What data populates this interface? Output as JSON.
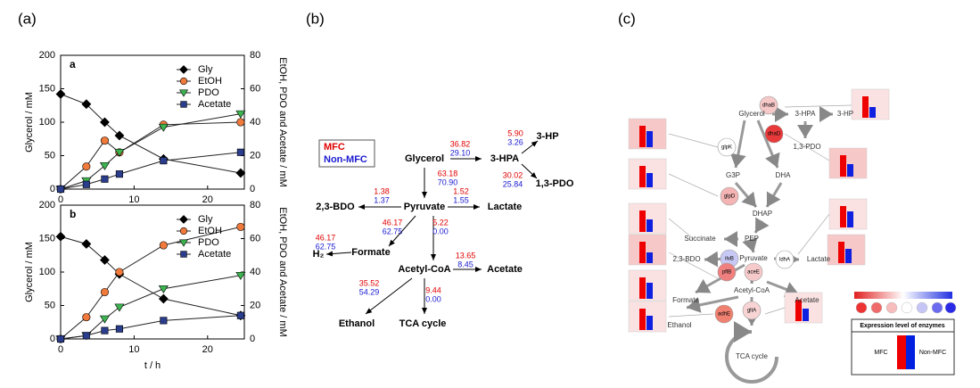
{
  "panel_labels": [
    "(a)",
    "(b)",
    "(c)"
  ],
  "chart_data": [
    {
      "type": "line",
      "label": "a",
      "x": [
        0,
        3.5,
        6,
        8,
        14,
        24.5
      ],
      "xlim": [
        0,
        25
      ],
      "xticks": [
        0,
        10,
        20
      ],
      "ylim": [
        0,
        200
      ],
      "yticks": [
        0,
        50,
        100,
        150,
        200
      ],
      "y2lim": [
        0,
        80
      ],
      "y2ticks": [
        0,
        20,
        40,
        60,
        80
      ],
      "y_label": "Glycerol / mM",
      "y2_label": "EtOH, PDO and Acetate / mM",
      "series": [
        {
          "name": "Gly",
          "color": "#000000",
          "marker": "diamond",
          "values": [
            142,
            127,
            100,
            80,
            45,
            24
          ]
        },
        {
          "name": "EtOH",
          "color": "#f07a3c",
          "marker": "circle",
          "axis": "y2",
          "values": [
            0,
            13.5,
            29,
            22,
            38.5,
            40
          ]
        },
        {
          "name": "PDO",
          "color": "#3cb450",
          "marker": "triangle",
          "axis": "y2",
          "values": [
            0,
            5,
            14,
            22,
            37,
            45
          ]
        },
        {
          "name": "Acetate",
          "color": "#2a3c8c",
          "marker": "square",
          "axis": "y2",
          "values": [
            0,
            2.8,
            6,
            9,
            17,
            22
          ]
        }
      ]
    },
    {
      "type": "line",
      "label": "b",
      "x": [
        0,
        3.5,
        6,
        8,
        14,
        24.5
      ],
      "xlim": [
        0,
        25
      ],
      "xticks": [
        0,
        10,
        20
      ],
      "ylim": [
        0,
        200
      ],
      "yticks": [
        0,
        50,
        100,
        150,
        200
      ],
      "y2lim": [
        0,
        80
      ],
      "y2ticks": [
        0,
        20,
        40,
        60,
        80
      ],
      "x_label": "t / h",
      "y_label": "Glycerol / mM",
      "y2_label": "EtOH, PDO and Acetate / mM",
      "series": [
        {
          "name": "Gly",
          "color": "#000000",
          "marker": "diamond",
          "values": [
            153,
            142,
            118,
            97,
            60,
            35
          ]
        },
        {
          "name": "EtOH",
          "color": "#f07a3c",
          "marker": "circle",
          "axis": "y2",
          "values": [
            0,
            13,
            28,
            40,
            56,
            67
          ]
        },
        {
          "name": "PDO",
          "color": "#3cb450",
          "marker": "triangle",
          "axis": "y2",
          "values": [
            0,
            2,
            12,
            19,
            30,
            38
          ]
        },
        {
          "name": "Acetate",
          "color": "#2a3c8c",
          "marker": "square",
          "axis": "y2",
          "values": [
            0,
            2,
            5,
            6,
            11,
            14
          ]
        }
      ]
    }
  ],
  "pathway_b": {
    "legend": [
      "MFC",
      "Non-MFC"
    ],
    "nodes": [
      "Glycerol",
      "3-HPA",
      "3-HP",
      "1,3-PDO",
      "Pyruvate",
      "2,3-BDO",
      "Lactate",
      "Formate",
      "H₂",
      "Acetyl-CoA",
      "Acetate",
      "Ethanol",
      "TCA cycle"
    ],
    "fluxes": [
      {
        "mfc": "36.82",
        "non_mfc": "29.10"
      },
      {
        "mfc": "5.90",
        "non_mfc": "3.26"
      },
      {
        "mfc": "30.02",
        "non_mfc": "25.84"
      },
      {
        "mfc": "63.18",
        "non_mfc": "70.90"
      },
      {
        "mfc": "1.38",
        "non_mfc": "1.37"
      },
      {
        "mfc": "1.52",
        "non_mfc": "1.55"
      },
      {
        "mfc": "46.17",
        "non_mfc": "62.75"
      },
      {
        "mfc": "5.22",
        "non_mfc": "0.00"
      },
      {
        "mfc": "46.17",
        "non_mfc": "62.75"
      },
      {
        "mfc": "13.65",
        "non_mfc": "8.45"
      },
      {
        "mfc": "35.52",
        "non_mfc": "54.29"
      },
      {
        "mfc": "9.44",
        "non_mfc": "0.00"
      }
    ]
  },
  "pathway_c": {
    "metabolites": [
      "Glycerol",
      "3-HPA",
      "3-HP",
      "G3P",
      "DHA",
      "1,3-PDO",
      "DHAP",
      "Succinate",
      "PEP",
      "Pyruvate",
      "Lactate",
      "2,3-BDO",
      "Formate",
      "Acetyl-CoA",
      "Acetate",
      "Ethanol",
      "TCA cycle"
    ],
    "enzymes": [
      "dhaB",
      "glpK",
      "dhaD",
      "glpD",
      "ilvB",
      "ldhA",
      "pflB",
      "aceE",
      "adhE",
      "gltA"
    ],
    "legend_title": "Expression level of enzymes",
    "legend_labels": [
      "MFC",
      "Non-MFC"
    ]
  }
}
